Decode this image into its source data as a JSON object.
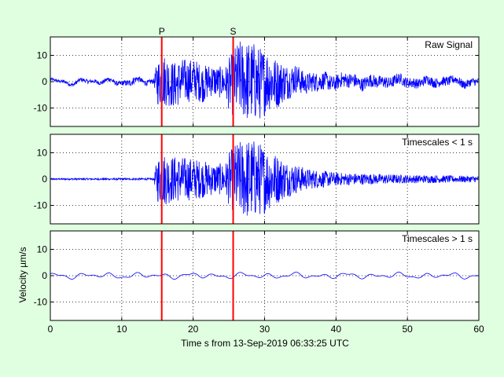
{
  "chart_data": {
    "type": "line",
    "xlabel": "Time s from 13-Sep-2019 06:33:25 UTC",
    "ylabel": "Velocity µm/s",
    "xlim": [
      0,
      60
    ],
    "x_ticks": [
      "0",
      "10",
      "20",
      "30",
      "40",
      "50",
      "60"
    ],
    "grid": "dotted",
    "line_color": "#0000ff",
    "marker_color": "#ff0000",
    "markers": [
      {
        "label": "P",
        "t": 15.6
      },
      {
        "label": "S",
        "t": 25.6
      }
    ],
    "panels": [
      {
        "title": "Raw Signal",
        "ylim": [
          -17,
          17
        ],
        "y_ticks": [
          "10",
          "0",
          "-10"
        ],
        "envelope": [
          [
            0,
            0.6
          ],
          [
            10,
            0.9
          ],
          [
            11.5,
            1.5
          ],
          [
            12.5,
            1.0
          ],
          [
            14.5,
            1.0
          ],
          [
            15,
            9
          ],
          [
            16,
            10
          ],
          [
            17,
            9
          ],
          [
            20,
            8
          ],
          [
            23,
            6
          ],
          [
            24.5,
            6
          ],
          [
            25,
            10
          ],
          [
            26,
            14
          ],
          [
            28,
            16
          ],
          [
            30,
            13
          ],
          [
            31,
            11
          ],
          [
            33,
            7
          ],
          [
            36,
            4
          ],
          [
            40,
            3
          ],
          [
            45,
            2.5
          ],
          [
            50,
            2
          ],
          [
            55,
            1.8
          ],
          [
            60,
            1.5
          ]
        ],
        "slow_amplitude": 1.0
      },
      {
        "title": "Timescales < 1 s",
        "ylim": [
          -17,
          17
        ],
        "y_ticks": [
          "10",
          "0",
          "-10"
        ],
        "envelope": [
          [
            0,
            0.3
          ],
          [
            14.5,
            0.4
          ],
          [
            15,
            9
          ],
          [
            16,
            10
          ],
          [
            17,
            9
          ],
          [
            20,
            8
          ],
          [
            23,
            6
          ],
          [
            24.5,
            6
          ],
          [
            25,
            10
          ],
          [
            26,
            14
          ],
          [
            28,
            16
          ],
          [
            30,
            13
          ],
          [
            31,
            11
          ],
          [
            33,
            7
          ],
          [
            36,
            4
          ],
          [
            40,
            2.5
          ],
          [
            45,
            2
          ],
          [
            50,
            1.6
          ],
          [
            55,
            1.4
          ],
          [
            60,
            1.2
          ]
        ],
        "slow_amplitude": 0
      },
      {
        "title": "Timescales > 1 s",
        "ylim": [
          -17,
          17
        ],
        "y_ticks": [
          "10",
          "0",
          "-10"
        ],
        "envelope": [
          [
            0,
            0
          ],
          [
            60,
            0
          ]
        ],
        "slow_amplitude": 1.1
      }
    ]
  }
}
